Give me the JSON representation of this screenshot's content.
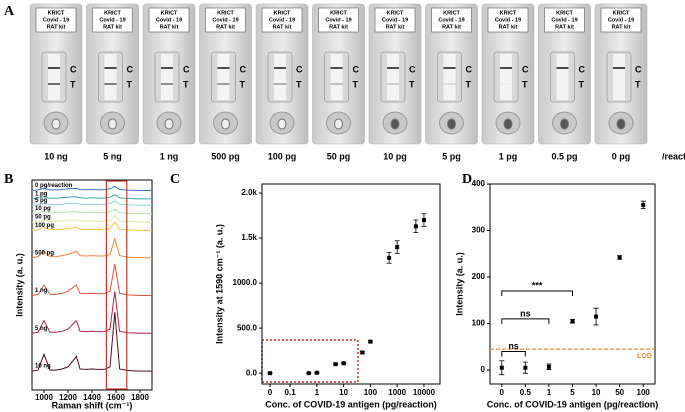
{
  "panel_a": {
    "panel": "A",
    "kit_label": [
      "KRICT",
      "Covid - 19",
      "RAT kit"
    ],
    "control_label": "C",
    "test_label": "T",
    "samples": [
      "10 ng",
      "5 ng",
      "1 ng",
      "500 pg",
      "100 pg",
      "50 pg",
      "10 pg",
      "5 pg",
      "1 pg",
      "0.5 pg",
      "0 pg"
    ],
    "unit": "/reaction"
  },
  "chart_data": [
    {
      "type": "line",
      "panel": "B",
      "xlabel": "Raman shift (cm⁻¹)",
      "ylabel": "Intensity (a. u.)",
      "x": [
        900,
        950,
        1000,
        1050,
        1100,
        1150,
        1200,
        1270,
        1300,
        1350,
        1400,
        1450,
        1500,
        1550,
        1590,
        1630,
        1700,
        1800,
        1900
      ],
      "xlim": [
        900,
        1900
      ],
      "xticks": [
        1000,
        1200,
        1400,
        1600,
        1800
      ],
      "ylim": [
        0,
        100
      ],
      "highlight": {
        "x": [
          1520,
          1690
        ],
        "color": "#c0392b"
      },
      "series": [
        {
          "name": "0 pg/reaction",
          "color": "#3b78c2",
          "values": [
            95,
            95.3,
            96,
            95.3,
            95.3,
            95.5,
            95.8,
            96,
            95.5,
            95.4,
            95.5,
            95.4,
            95.4,
            95.8,
            97,
            95.5,
            95.2,
            95,
            95
          ]
        },
        {
          "name": "1 pg",
          "color": "#3aa6a6",
          "values": [
            91,
            91.3,
            92,
            91.3,
            91.3,
            91.5,
            91.8,
            92,
            91.5,
            91.4,
            91.5,
            91.4,
            91.4,
            91.8,
            93,
            91.5,
            91.2,
            91,
            91
          ]
        },
        {
          "name": "5 pg",
          "color": "#8fd0d8",
          "values": [
            88,
            88.3,
            89,
            88.3,
            88.3,
            88.5,
            88.8,
            89,
            88.5,
            88.4,
            88.5,
            88.4,
            88.4,
            88.8,
            90,
            88.5,
            88.2,
            88,
            88
          ]
        },
        {
          "name": "10 pg",
          "color": "#b7e0b0",
          "values": [
            84,
            84.3,
            85,
            84.3,
            84.3,
            84.5,
            84.8,
            85,
            84.5,
            84.4,
            84.5,
            84.4,
            84.4,
            84.8,
            86,
            84.5,
            84.2,
            84,
            84
          ]
        },
        {
          "name": "50 pg",
          "color": "#d9e6a0",
          "values": [
            80,
            80.3,
            81,
            80.3,
            80.3,
            80.5,
            80.8,
            81,
            80.5,
            80.4,
            80.5,
            80.4,
            80.4,
            80.8,
            83,
            80.5,
            80.2,
            80,
            80
          ]
        },
        {
          "name": "100 pg",
          "color": "#f5c242",
          "values": [
            76,
            76.3,
            77.5,
            76.3,
            76.3,
            76.5,
            76.8,
            77.5,
            76.5,
            76.4,
            76.5,
            76.4,
            76.4,
            76.8,
            80,
            76.5,
            76.2,
            76,
            76
          ]
        },
        {
          "name": "500 pg",
          "color": "#f0873a",
          "values": [
            63,
            63.5,
            66,
            63.5,
            63.5,
            64,
            64.5,
            66,
            64,
            63.8,
            64,
            63.8,
            63.8,
            64.5,
            72,
            64,
            63.3,
            63,
            63
          ]
        },
        {
          "name": "1 ng",
          "color": "#e0533f",
          "values": [
            45,
            45.5,
            50,
            45.5,
            45.5,
            46,
            47,
            50,
            46,
            45.8,
            46,
            45.8,
            45.8,
            47,
            60,
            46,
            45.3,
            45,
            45
          ]
        },
        {
          "name": "5 ng",
          "color": "#b0204a",
          "values": [
            27,
            27.5,
            33,
            27.5,
            27.5,
            28,
            29,
            33,
            28,
            27.8,
            28,
            27.8,
            27.8,
            29,
            47,
            28,
            27.3,
            27,
            27
          ]
        },
        {
          "name": "10 ng",
          "color": "#4a0f22",
          "values": [
            9,
            9.5,
            17,
            9.5,
            9.5,
            10,
            11,
            16,
            10,
            9.8,
            10,
            9.8,
            9.8,
            11,
            37,
            10,
            9.3,
            9,
            9
          ]
        }
      ]
    },
    {
      "type": "scatter",
      "panel": "C",
      "xlabel": "Conc. of COVID-19 antigen (pg/reaction)",
      "ylabel": "Intensity at 1590 cm⁻¹ (a. u.)",
      "xscale": "log",
      "x": [
        0,
        0.5,
        1,
        5,
        10,
        50,
        100,
        500,
        1000,
        5000,
        10000
      ],
      "values": [
        0,
        0,
        5,
        100,
        110,
        230,
        350,
        1280,
        1400,
        1630,
        1700
      ],
      "errors": [
        5,
        5,
        5,
        5,
        5,
        10,
        10,
        60,
        70,
        70,
        70
      ],
      "xlim": [
        0,
        20000
      ],
      "xticks": [
        0,
        0.1,
        1,
        10,
        100,
        1000,
        10000
      ],
      "ylim": [
        -120,
        2100
      ],
      "yticks": [
        {
          "value": 0,
          "label": "0.0"
        },
        {
          "value": 500,
          "label": "500.0"
        },
        {
          "value": 1000,
          "label": "1000.0"
        },
        {
          "value": 1500,
          "label": "1.5k"
        },
        {
          "value": 2000,
          "label": "2.0k"
        }
      ],
      "color": "#000000"
    },
    {
      "type": "scatter",
      "panel": "D",
      "xlabel": "Conc. of COVID-19 antigen (pg/reaction)",
      "ylabel": "Intensity (a. u.)",
      "categories": [
        "0",
        "0.5",
        "1",
        "5",
        "10",
        "50",
        "100"
      ],
      "values": [
        5,
        5,
        7,
        105,
        115,
        242,
        355
      ],
      "errors": [
        15,
        12,
        6,
        4,
        18,
        4,
        8
      ],
      "ylim": [
        -30,
        400
      ],
      "yticks": [
        0,
        100,
        200,
        300,
        400
      ],
      "color": "#000000",
      "lod": {
        "value": 45,
        "label": "LOD",
        "color": "#f28c28"
      },
      "brackets": [
        {
          "from": "0",
          "to": "5",
          "y": 170,
          "label": "***"
        },
        {
          "from": "0",
          "to": "1",
          "y": 110,
          "label": "ns"
        },
        {
          "from": "0",
          "to": "0.5",
          "y": 40,
          "label": "ns"
        }
      ]
    }
  ]
}
